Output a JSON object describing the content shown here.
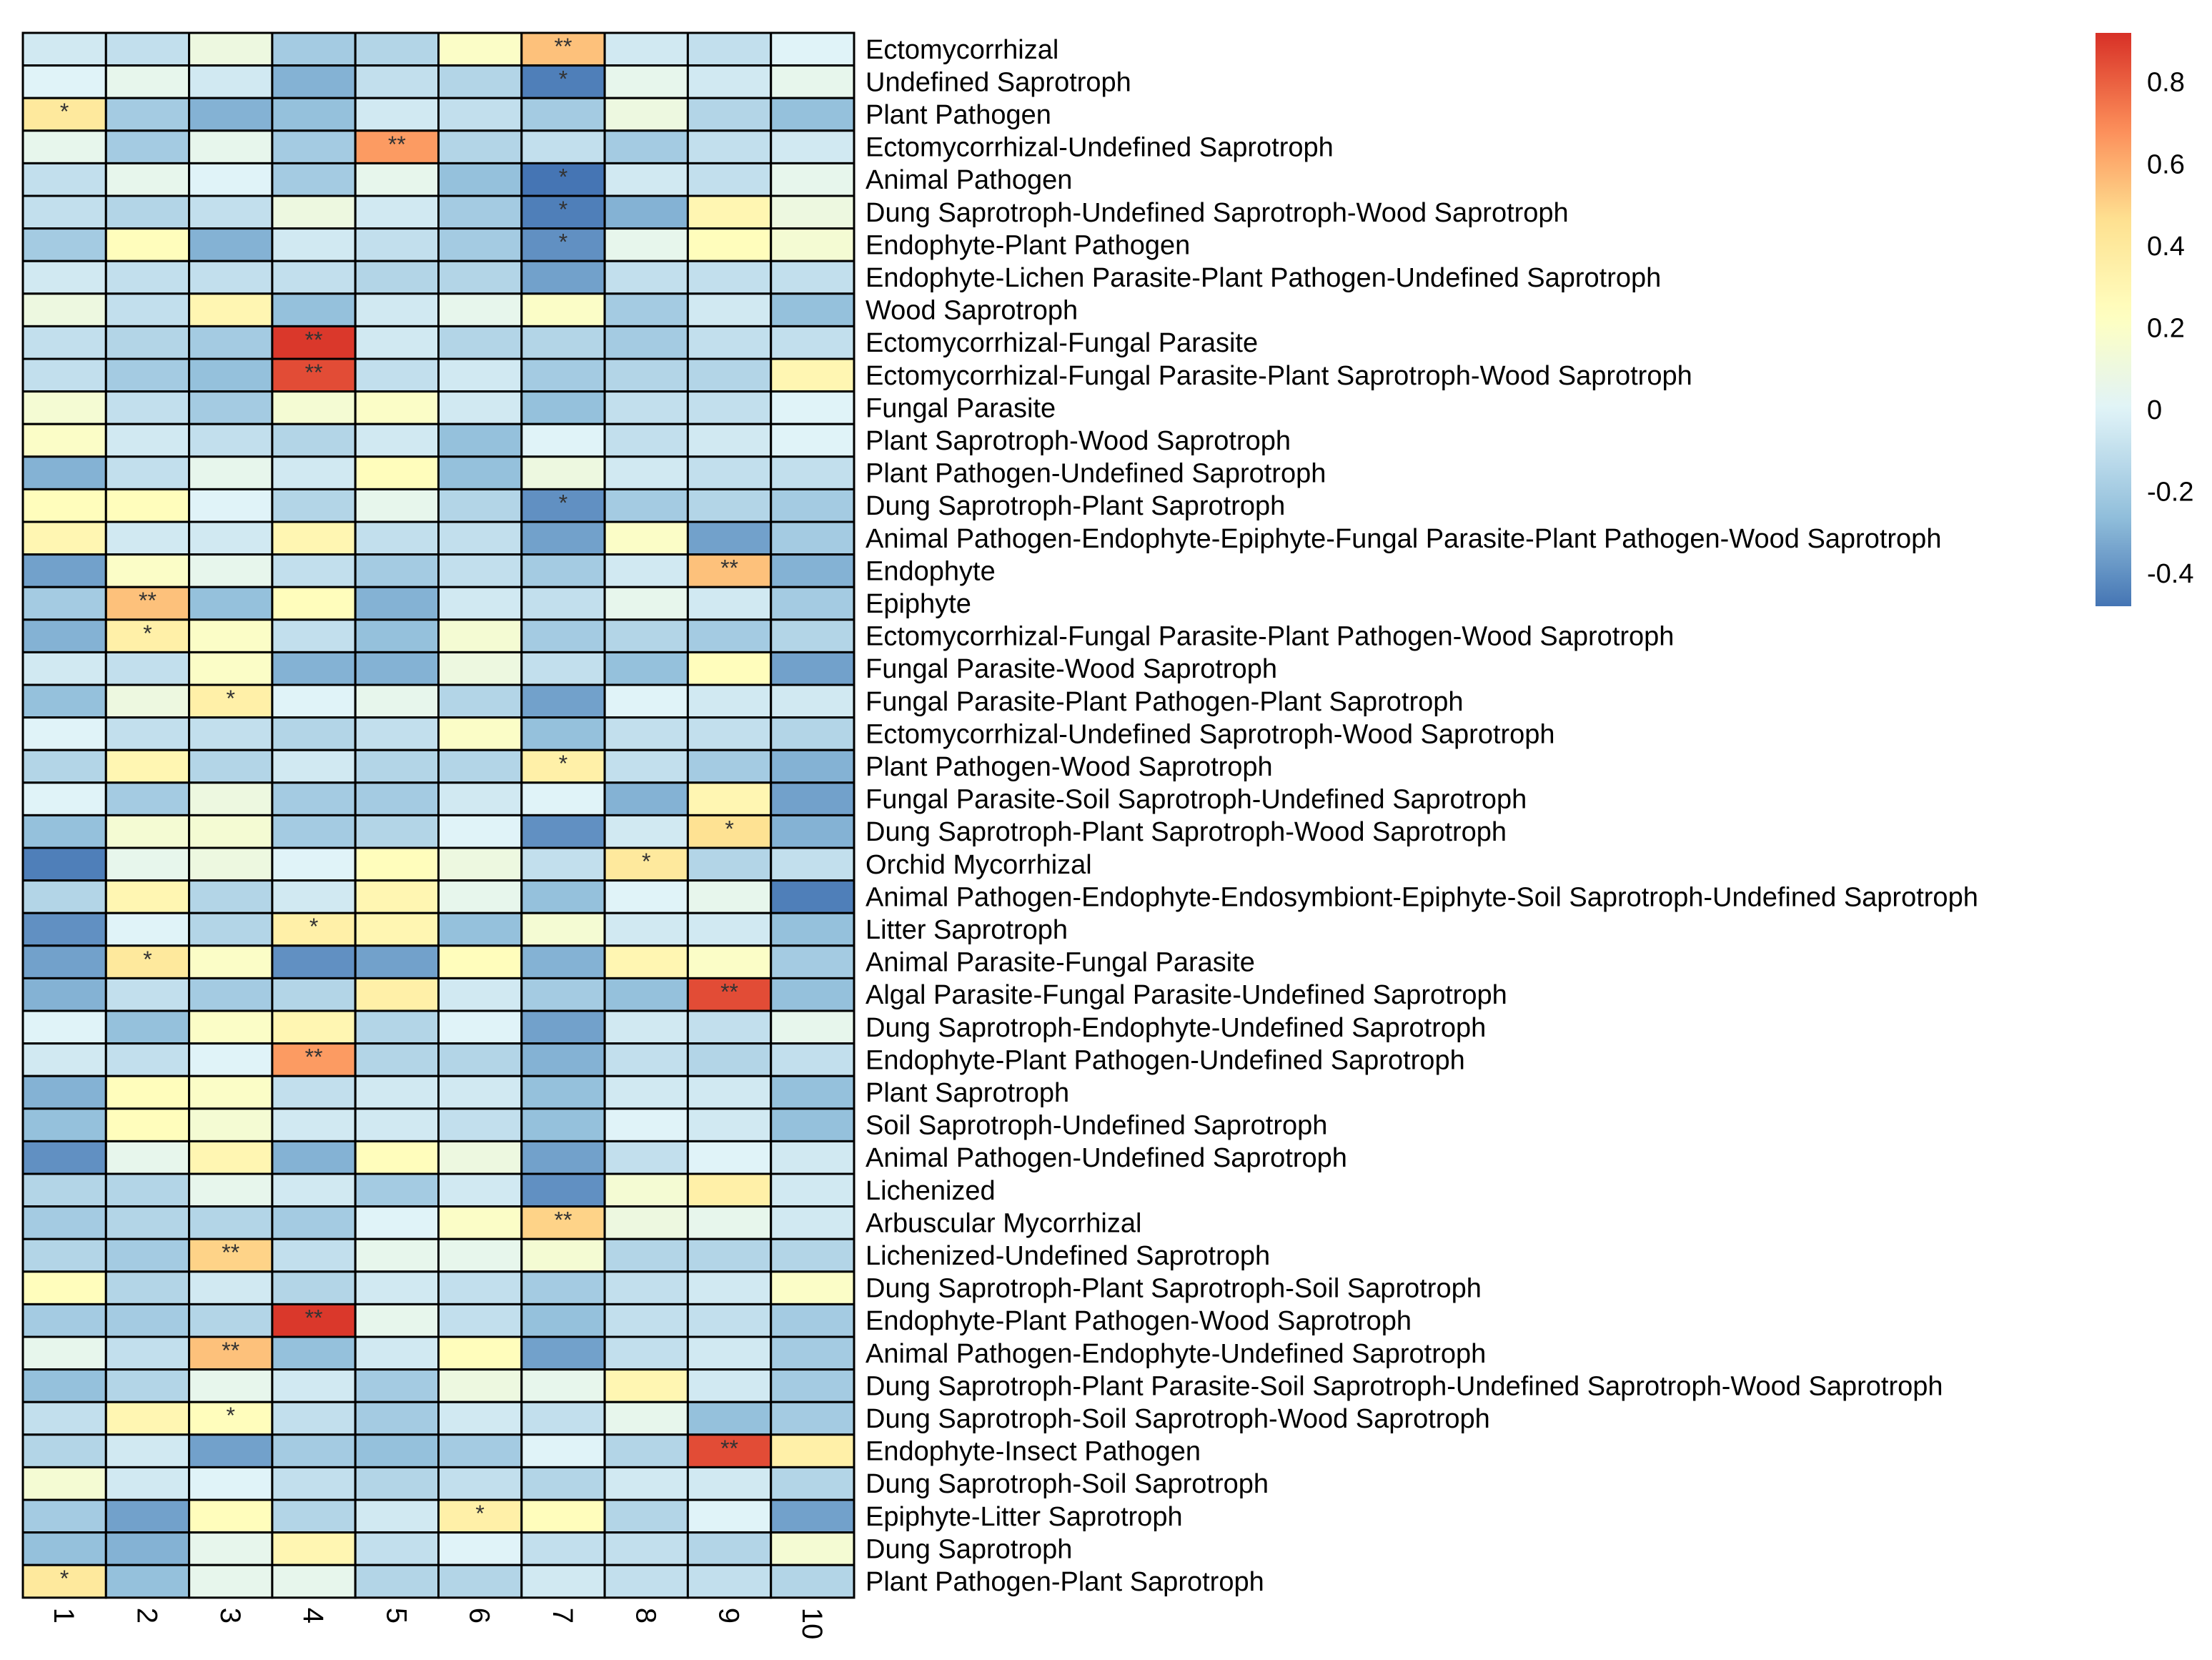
{
  "chart_data": {
    "type": "heatmap",
    "title": "",
    "columns": [
      "1",
      "2",
      "3",
      "4",
      "5",
      "6",
      "7",
      "8",
      "9",
      "10"
    ],
    "rows": [
      "Ectomycorrhizal",
      "Undefined Saprotroph",
      "Plant Pathogen",
      "Ectomycorrhizal-Undefined Saprotroph",
      "Animal Pathogen",
      "Dung Saprotroph-Undefined Saprotroph-Wood Saprotroph",
      "Endophyte-Plant Pathogen",
      "Endophyte-Lichen Parasite-Plant Pathogen-Undefined Saprotroph",
      "Wood Saprotroph",
      "Ectomycorrhizal-Fungal Parasite",
      "Ectomycorrhizal-Fungal Parasite-Plant Saprotroph-Wood Saprotroph",
      "Fungal Parasite",
      "Plant Saprotroph-Wood Saprotroph",
      "Plant Pathogen-Undefined Saprotroph",
      "Dung Saprotroph-Plant Saprotroph",
      "Animal Pathogen-Endophyte-Epiphyte-Fungal Parasite-Plant Pathogen-Wood Saprotroph",
      "Endophyte",
      "Epiphyte",
      "Ectomycorrhizal-Fungal Parasite-Plant Pathogen-Wood Saprotroph",
      "Fungal Parasite-Wood Saprotroph",
      "Fungal Parasite-Plant Pathogen-Plant Saprotroph",
      "Ectomycorrhizal-Undefined Saprotroph-Wood Saprotroph",
      "Plant Pathogen-Wood Saprotroph",
      "Fungal Parasite-Soil Saprotroph-Undefined Saprotroph",
      "Dung Saprotroph-Plant Saprotroph-Wood Saprotroph",
      "Orchid Mycorrhizal",
      "Animal Pathogen-Endophyte-Endosymbiont-Epiphyte-Soil Saprotroph-Undefined Saprotroph",
      "Litter Saprotroph",
      "Animal Parasite-Fungal Parasite",
      "Algal Parasite-Fungal Parasite-Undefined Saprotroph",
      "Dung Saprotroph-Endophyte-Undefined Saprotroph",
      "Endophyte-Plant Pathogen-Undefined Saprotroph",
      "Plant Saprotroph",
      "Soil Saprotroph-Undefined Saprotroph",
      "Animal Pathogen-Undefined Saprotroph",
      "Lichenized",
      "Arbuscular Mycorrhizal",
      "Lichenized-Undefined Saprotroph",
      "Dung Saprotroph-Plant Saprotroph-Soil Saprotroph",
      "Endophyte-Plant Pathogen-Wood Saprotroph",
      "Animal Pathogen-Endophyte-Undefined Saprotroph",
      "Dung Saprotroph-Plant Parasite-Soil Saprotroph-Undefined Saprotroph-Wood Saprotroph",
      "Dung Saprotroph-Soil Saprotroph-Wood Saprotroph",
      "Endophyte-Insect Pathogen",
      "Dung Saprotroph-Soil Saprotroph",
      "Epiphyte-Litter Saprotroph",
      "Dung Saprotroph",
      "Plant Pathogen-Plant Saprotroph"
    ],
    "values": [
      [
        -0.05,
        -0.1,
        0.1,
        -0.2,
        -0.15,
        0.2,
        0.55,
        -0.05,
        -0.1,
        0.0
      ],
      [
        0.0,
        0.05,
        -0.05,
        -0.3,
        -0.1,
        -0.15,
        -0.45,
        0.05,
        -0.05,
        0.05
      ],
      [
        0.4,
        -0.2,
        -0.3,
        -0.25,
        -0.05,
        -0.1,
        -0.2,
        0.1,
        -0.15,
        -0.25
      ],
      [
        0.05,
        -0.2,
        0.05,
        -0.2,
        0.65,
        -0.15,
        -0.1,
        -0.2,
        -0.1,
        -0.05
      ],
      [
        -0.1,
        0.05,
        0.0,
        -0.2,
        0.05,
        -0.25,
        -0.5,
        -0.05,
        -0.1,
        0.05
      ],
      [
        -0.1,
        -0.15,
        -0.1,
        0.1,
        -0.05,
        -0.2,
        -0.45,
        -0.3,
        0.3,
        0.1
      ],
      [
        -0.2,
        0.25,
        -0.3,
        -0.05,
        -0.1,
        -0.2,
        -0.4,
        0.05,
        0.25,
        0.15
      ],
      [
        -0.05,
        -0.1,
        -0.1,
        -0.1,
        -0.15,
        -0.15,
        -0.35,
        -0.1,
        -0.1,
        -0.1
      ],
      [
        0.1,
        -0.1,
        0.3,
        -0.25,
        -0.05,
        0.05,
        0.2,
        -0.2,
        -0.05,
        -0.25
      ],
      [
        -0.1,
        -0.15,
        -0.2,
        0.9,
        -0.05,
        -0.15,
        -0.15,
        -0.2,
        -0.1,
        -0.1
      ],
      [
        -0.1,
        -0.2,
        -0.25,
        0.85,
        -0.1,
        -0.05,
        -0.2,
        -0.15,
        -0.15,
        0.3
      ],
      [
        0.15,
        -0.1,
        -0.2,
        0.15,
        0.2,
        -0.05,
        -0.25,
        -0.1,
        -0.1,
        0.0
      ],
      [
        0.2,
        -0.05,
        -0.1,
        -0.15,
        -0.05,
        -0.25,
        0.0,
        -0.1,
        -0.05,
        0.0
      ],
      [
        -0.3,
        -0.1,
        0.05,
        -0.05,
        0.25,
        -0.25,
        0.1,
        -0.05,
        -0.1,
        -0.1
      ],
      [
        0.25,
        0.25,
        0.0,
        -0.15,
        0.05,
        -0.15,
        -0.4,
        -0.2,
        -0.15,
        -0.2
      ],
      [
        0.3,
        -0.05,
        -0.05,
        0.3,
        -0.1,
        -0.1,
        -0.35,
        0.2,
        -0.35,
        -0.2
      ],
      [
        -0.35,
        0.2,
        0.05,
        -0.1,
        -0.2,
        -0.1,
        -0.2,
        -0.05,
        0.55,
        -0.3
      ],
      [
        -0.2,
        0.55,
        -0.25,
        0.25,
        -0.3,
        -0.05,
        -0.1,
        0.05,
        -0.05,
        -0.2
      ],
      [
        -0.3,
        0.35,
        0.2,
        -0.1,
        -0.25,
        0.15,
        -0.2,
        -0.15,
        -0.2,
        -0.15
      ],
      [
        -0.05,
        -0.1,
        0.2,
        -0.3,
        -0.3,
        0.1,
        -0.1,
        -0.25,
        0.25,
        -0.35
      ],
      [
        -0.25,
        0.1,
        0.35,
        0.0,
        0.05,
        -0.15,
        -0.35,
        0.0,
        -0.05,
        -0.05
      ],
      [
        0.0,
        -0.1,
        -0.1,
        -0.15,
        -0.1,
        0.2,
        -0.25,
        -0.1,
        -0.1,
        -0.15
      ],
      [
        -0.15,
        0.3,
        -0.15,
        -0.05,
        -0.15,
        -0.15,
        0.35,
        -0.1,
        -0.2,
        -0.3
      ],
      [
        0.0,
        -0.2,
        0.1,
        -0.2,
        -0.2,
        -0.05,
        0.0,
        -0.3,
        0.3,
        -0.35
      ],
      [
        -0.25,
        0.15,
        0.15,
        -0.2,
        -0.15,
        0.0,
        -0.4,
        -0.05,
        0.45,
        -0.3
      ],
      [
        -0.45,
        0.05,
        0.1,
        0.0,
        0.25,
        0.1,
        -0.1,
        0.4,
        -0.15,
        -0.1
      ],
      [
        -0.15,
        0.3,
        -0.15,
        -0.05,
        0.3,
        0.05,
        -0.25,
        0.0,
        0.05,
        -0.45
      ],
      [
        -0.4,
        0.0,
        -0.15,
        0.35,
        0.3,
        -0.25,
        0.15,
        -0.05,
        -0.05,
        -0.25
      ],
      [
        -0.35,
        0.4,
        0.2,
        -0.4,
        -0.35,
        0.25,
        -0.3,
        0.3,
        0.2,
        -0.2
      ],
      [
        -0.3,
        -0.1,
        -0.2,
        -0.15,
        0.35,
        -0.05,
        -0.2,
        -0.25,
        0.85,
        -0.25
      ],
      [
        0.0,
        -0.25,
        0.2,
        0.3,
        -0.15,
        0.0,
        -0.35,
        -0.05,
        -0.1,
        0.05
      ],
      [
        -0.05,
        -0.1,
        0.0,
        0.65,
        -0.15,
        -0.15,
        -0.3,
        -0.1,
        -0.15,
        -0.1
      ],
      [
        -0.3,
        0.25,
        0.2,
        -0.1,
        -0.05,
        -0.05,
        -0.25,
        -0.05,
        -0.05,
        -0.25
      ],
      [
        -0.25,
        0.25,
        0.15,
        -0.05,
        -0.05,
        -0.1,
        -0.25,
        0.0,
        -0.05,
        -0.25
      ],
      [
        -0.4,
        0.05,
        0.3,
        -0.3,
        0.25,
        0.1,
        -0.35,
        -0.1,
        0.0,
        -0.05
      ],
      [
        -0.15,
        -0.15,
        0.05,
        -0.05,
        -0.2,
        -0.05,
        -0.4,
        0.15,
        0.35,
        -0.05
      ],
      [
        -0.2,
        -0.15,
        -0.15,
        -0.2,
        0.0,
        0.2,
        0.5,
        0.1,
        0.05,
        -0.05
      ],
      [
        -0.15,
        -0.2,
        0.5,
        -0.1,
        0.05,
        0.05,
        0.15,
        -0.15,
        -0.15,
        -0.15
      ],
      [
        0.25,
        -0.15,
        -0.05,
        -0.15,
        -0.05,
        -0.1,
        -0.2,
        -0.1,
        -0.05,
        0.2
      ],
      [
        -0.2,
        -0.2,
        -0.15,
        0.9,
        0.05,
        -0.1,
        -0.25,
        -0.1,
        -0.1,
        -0.2
      ],
      [
        0.05,
        -0.1,
        0.55,
        -0.25,
        -0.05,
        0.25,
        -0.35,
        -0.1,
        -0.05,
        -0.2
      ],
      [
        -0.25,
        -0.15,
        0.05,
        -0.05,
        -0.2,
        0.1,
        0.05,
        0.3,
        -0.05,
        -0.2
      ],
      [
        -0.1,
        0.3,
        0.25,
        -0.1,
        -0.2,
        -0.05,
        -0.1,
        0.05,
        -0.25,
        -0.2
      ],
      [
        -0.15,
        -0.05,
        -0.35,
        -0.2,
        -0.25,
        -0.2,
        0.0,
        -0.15,
        0.85,
        0.35
      ],
      [
        0.15,
        -0.05,
        0.0,
        -0.1,
        -0.15,
        -0.1,
        -0.15,
        -0.05,
        -0.05,
        -0.15
      ],
      [
        -0.2,
        -0.35,
        0.25,
        -0.15,
        -0.05,
        0.35,
        0.25,
        -0.15,
        0.0,
        -0.35
      ],
      [
        -0.25,
        -0.3,
        0.05,
        0.3,
        -0.1,
        0.0,
        -0.1,
        -0.1,
        -0.15,
        0.15
      ],
      [
        0.4,
        -0.25,
        0.05,
        0.05,
        -0.15,
        -0.15,
        -0.05,
        -0.1,
        -0.1,
        -0.15
      ]
    ],
    "significance": [
      [
        "",
        "",
        "",
        "",
        "",
        "",
        "**",
        "",
        "",
        ""
      ],
      [
        "",
        "",
        "",
        "",
        "",
        "",
        "*",
        "",
        "",
        ""
      ],
      [
        "*",
        "",
        "",
        "",
        "",
        "",
        "",
        "",
        "",
        ""
      ],
      [
        "",
        "",
        "",
        "",
        "**",
        "",
        "",
        "",
        "",
        ""
      ],
      [
        "",
        "",
        "",
        "",
        "",
        "",
        "*",
        "",
        "",
        ""
      ],
      [
        "",
        "",
        "",
        "",
        "",
        "",
        "*",
        "",
        "",
        ""
      ],
      [
        "",
        "",
        "",
        "",
        "",
        "",
        "*",
        "",
        "",
        ""
      ],
      [
        "",
        "",
        "",
        "",
        "",
        "",
        "",
        "",
        "",
        ""
      ],
      [
        "",
        "",
        "",
        "",
        "",
        "",
        "",
        "",
        "",
        ""
      ],
      [
        "",
        "",
        "",
        "**",
        "",
        "",
        "",
        "",
        "",
        ""
      ],
      [
        "",
        "",
        "",
        "**",
        "",
        "",
        "",
        "",
        "",
        ""
      ],
      [
        "",
        "",
        "",
        "",
        "",
        "",
        "",
        "",
        "",
        ""
      ],
      [
        "",
        "",
        "",
        "",
        "",
        "",
        "",
        "",
        "",
        ""
      ],
      [
        "",
        "",
        "",
        "",
        "",
        "",
        "",
        "",
        "",
        ""
      ],
      [
        "",
        "",
        "",
        "",
        "",
        "",
        "*",
        "",
        "",
        ""
      ],
      [
        "",
        "",
        "",
        "",
        "",
        "",
        "",
        "",
        "",
        ""
      ],
      [
        "",
        "",
        "",
        "",
        "",
        "",
        "",
        "",
        "**",
        ""
      ],
      [
        "",
        "**",
        "",
        "",
        "",
        "",
        "",
        "",
        "",
        ""
      ],
      [
        "",
        "*",
        "",
        "",
        "",
        "",
        "",
        "",
        "",
        ""
      ],
      [
        "",
        "",
        "",
        "",
        "",
        "",
        "",
        "",
        "",
        ""
      ],
      [
        "",
        "",
        "*",
        "",
        "",
        "",
        "",
        "",
        "",
        ""
      ],
      [
        "",
        "",
        "",
        "",
        "",
        "",
        "",
        "",
        "",
        ""
      ],
      [
        "",
        "",
        "",
        "",
        "",
        "",
        "*",
        "",
        "",
        ""
      ],
      [
        "",
        "",
        "",
        "",
        "",
        "",
        "",
        "",
        "",
        ""
      ],
      [
        "",
        "",
        "",
        "",
        "",
        "",
        "",
        "",
        "*",
        ""
      ],
      [
        "",
        "",
        "",
        "",
        "",
        "",
        "",
        "*",
        "",
        ""
      ],
      [
        "",
        "",
        "",
        "",
        "",
        "",
        "",
        "",
        "",
        ""
      ],
      [
        "",
        "",
        "",
        "*",
        "",
        "",
        "",
        "",
        "",
        ""
      ],
      [
        "",
        "*",
        "",
        "",
        "",
        "",
        "",
        "",
        "",
        ""
      ],
      [
        "",
        "",
        "",
        "",
        "",
        "",
        "",
        "",
        "**",
        ""
      ],
      [
        "",
        "",
        "",
        "",
        "",
        "",
        "",
        "",
        "",
        ""
      ],
      [
        "",
        "",
        "",
        "**",
        "",
        "",
        "",
        "",
        "",
        ""
      ],
      [
        "",
        "",
        "",
        "",
        "",
        "",
        "",
        "",
        "",
        ""
      ],
      [
        "",
        "",
        "",
        "",
        "",
        "",
        "",
        "",
        "",
        ""
      ],
      [
        "",
        "",
        "",
        "",
        "",
        "",
        "",
        "",
        "",
        ""
      ],
      [
        "",
        "",
        "",
        "",
        "",
        "",
        "",
        "",
        "",
        ""
      ],
      [
        "",
        "",
        "",
        "",
        "",
        "",
        "**",
        "",
        "",
        ""
      ],
      [
        "",
        "",
        "**",
        "",
        "",
        "",
        "",
        "",
        "",
        ""
      ],
      [
        "",
        "",
        "",
        "",
        "",
        "",
        "",
        "",
        "",
        ""
      ],
      [
        "",
        "",
        "",
        "**",
        "",
        "",
        "",
        "",
        "",
        ""
      ],
      [
        "",
        "",
        "**",
        "",
        "",
        "",
        "",
        "",
        "",
        ""
      ],
      [
        "",
        "",
        "",
        "",
        "",
        "",
        "",
        "",
        "",
        ""
      ],
      [
        "",
        "",
        "*",
        "",
        "",
        "",
        "",
        "",
        "",
        ""
      ],
      [
        "",
        "",
        "",
        "",
        "",
        "",
        "",
        "",
        "**",
        ""
      ],
      [
        "",
        "",
        "",
        "",
        "",
        "",
        "",
        "",
        "",
        ""
      ],
      [
        "",
        "",
        "",
        "",
        "",
        "*",
        "",
        "",
        "",
        ""
      ],
      [
        "",
        "",
        "",
        "",
        "",
        "",
        "",
        "",
        "",
        ""
      ],
      [
        "*",
        "",
        "",
        "",
        "",
        "",
        "",
        "",
        "",
        ""
      ]
    ],
    "color_scale": {
      "min": -0.48,
      "max": 0.92,
      "low_color": "#4575b4",
      "mid_color": "#ffffbf",
      "high_color": "#d73027",
      "ticks": [
        0.8,
        0.6,
        0.4,
        0.2,
        0,
        -0.2,
        -0.4
      ],
      "tick_labels": [
        "0.8",
        "0.6",
        "0.4",
        "0.2",
        "0",
        "-0.2",
        "-0.4"
      ]
    },
    "legend_placement": "top-right"
  }
}
